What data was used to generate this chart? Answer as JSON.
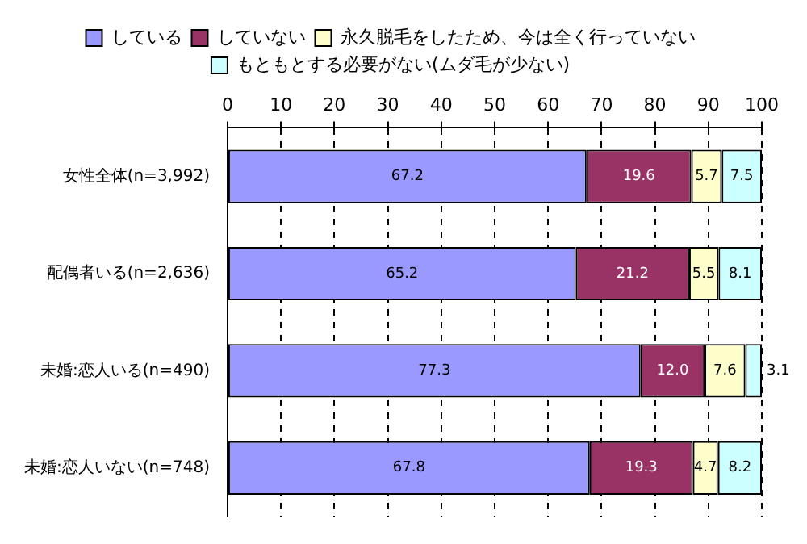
{
  "chart_data": {
    "type": "bar",
    "orientation": "horizontal",
    "stacked": true,
    "categories": [
      "女性全体(n=3,992)",
      "配偶者いる(n=2,636)",
      "未婚:恋人いる(n=490)",
      "未婚:恋人いない(n=748)"
    ],
    "series": [
      {
        "name": "している",
        "color": "#9999ff",
        "values": [
          67.2,
          65.2,
          77.3,
          67.8
        ],
        "value_labels": [
          "67.2",
          "65.2",
          "77.3",
          "67.8"
        ]
      },
      {
        "name": "していない",
        "color": "#993366",
        "values": [
          19.6,
          21.2,
          12.0,
          19.3
        ],
        "value_labels": [
          "19.6",
          "21.2",
          "12.0",
          "19.3"
        ]
      },
      {
        "name": "永久脱毛をしたため、今は全く行っていない",
        "color": "#ffffcc",
        "values": [
          5.7,
          5.5,
          7.6,
          4.7
        ],
        "value_labels": [
          "5.7",
          "5.5",
          "7.6",
          "4.7"
        ]
      },
      {
        "name": "もともとする必要がない(ムダ毛が少ない)",
        "color": "#ccffff",
        "values": [
          7.5,
          8.1,
          3.1,
          8.2
        ],
        "value_labels": [
          "7.5",
          "8.1",
          "3.1",
          "8.2"
        ]
      }
    ],
    "xlim": [
      0,
      100
    ],
    "xticks": [
      0,
      10,
      20,
      30,
      40,
      50,
      60,
      70,
      80,
      90,
      100
    ],
    "grid": "x",
    "legend": "top"
  }
}
